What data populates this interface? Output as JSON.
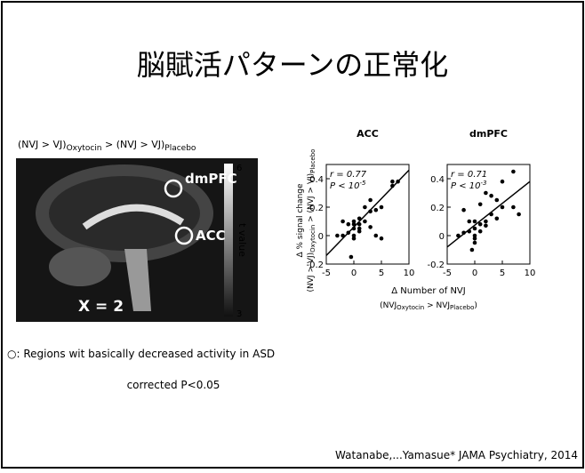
{
  "title": "脳賦活パターンの正常化",
  "brain": {
    "caption": [
      "(NVJ > VJ)",
      "Oxytocin",
      " > (NVJ > VJ)",
      "Placebo"
    ],
    "labels": [
      "dmPFC",
      "ACC",
      "X = 2"
    ],
    "colorbar_max": "6",
    "colorbar_min": "3",
    "colorbar_label": "t value"
  },
  "figure": {
    "ylabel": [
      "Δ % signal change",
      "(NVJ > VJ)",
      "Oxytocin",
      " > (NVJ > VJ)",
      "Placebo"
    ],
    "xlabel": [
      "Δ Number of NVJ",
      "(NVJ",
      "Oxytocin",
      " > NVJ",
      "Placebo",
      ")"
    ]
  },
  "chart_data": [
    {
      "type": "scatter",
      "title": "ACC",
      "stats": [
        "r = 0.77",
        "P < 10",
        "-5"
      ],
      "x": [
        -3,
        -2,
        -1,
        -1,
        0,
        0,
        0,
        0,
        0,
        1,
        1,
        1,
        1,
        2,
        2,
        -0.5,
        3,
        3,
        4,
        4,
        5,
        5,
        7,
        7,
        8,
        3,
        -2
      ],
      "values": [
        0,
        0,
        0.08,
        0.02,
        0.1,
        0.05,
        0,
        -0.02,
        0.08,
        0.05,
        0.08,
        0.12,
        0.03,
        0.1,
        0.2,
        -0.15,
        0.06,
        0.17,
        0.18,
        0,
        -0.02,
        0.2,
        0.35,
        0.38,
        0.38,
        0.25,
        0.1
      ],
      "trendline": {
        "x": [
          -5,
          10
        ],
        "y": [
          -0.14,
          0.46
        ]
      },
      "color": "#000000",
      "xlim": [
        -5,
        10
      ],
      "xticks": [
        -5,
        0,
        5,
        10
      ],
      "ylim": [
        -0.2,
        0.5
      ],
      "yticks": [
        -0.2,
        0,
        0.2,
        0.4
      ]
    },
    {
      "type": "scatter",
      "title": "dmPFC",
      "stats": [
        "r = 0.71",
        "P < 10",
        "-3"
      ],
      "x": [
        -3,
        -2,
        -2,
        -1,
        -1,
        0,
        0,
        0,
        0,
        0,
        1,
        1,
        1,
        2,
        2,
        3,
        3,
        4,
        4,
        5,
        5,
        7,
        7,
        8,
        2,
        -0.5
      ],
      "values": [
        0,
        0.02,
        0.18,
        0.1,
        0.03,
        0,
        0.05,
        -0.05,
        0.1,
        -0.02,
        0.08,
        0.22,
        0.03,
        0.1,
        0.07,
        0.15,
        0.28,
        0.25,
        0.12,
        0.2,
        0.38,
        0.45,
        0.2,
        0.15,
        0.3,
        -0.1
      ],
      "trendline": {
        "x": [
          -5,
          10
        ],
        "y": [
          -0.08,
          0.38
        ]
      },
      "color": "#000000",
      "xlim": [
        -5,
        10
      ],
      "xticks": [
        -5,
        0,
        5,
        10
      ],
      "ylim": [
        -0.2,
        0.5
      ],
      "yticks": [
        -0.2,
        0,
        0.2,
        0.4
      ]
    }
  ],
  "legend": "○: Regions wit basically decreased activity in ASD",
  "note": "corrected P<0.05",
  "citation": "Watanabe,...Yamasue* JAMA Psychiatry, 2014"
}
